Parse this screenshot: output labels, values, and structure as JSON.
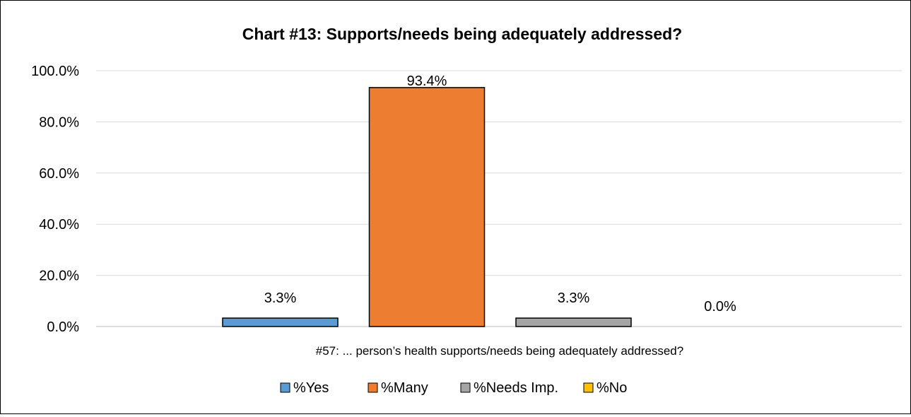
{
  "chart_data": {
    "type": "bar",
    "title": "Chart #13: Supports/needs being adequately addressed?",
    "xlabel": "",
    "ylabel": "",
    "categories": [
      "#57: ... person’s health supports/needs being adequately addressed?"
    ],
    "ylim": [
      0,
      100
    ],
    "y_ticks": [
      0,
      20,
      40,
      60,
      80,
      100
    ],
    "y_tick_labels": [
      "0.0%",
      "20.0%",
      "40.0%",
      "60.0%",
      "80.0%",
      "100.0%"
    ],
    "grid": true,
    "legend_position": "bottom",
    "series": [
      {
        "name": "%Yes",
        "values": [
          3.3
        ],
        "label": "3.3%",
        "color": "#5B9BD5"
      },
      {
        "name": "%Many",
        "values": [
          93.4
        ],
        "label": "93.4%",
        "color": "#ED7D31"
      },
      {
        "name": "%Needs Imp.",
        "values": [
          3.3
        ],
        "label": "3.3%",
        "color": "#A5A5A5"
      },
      {
        "name": "%No",
        "values": [
          0.0
        ],
        "label": "0.0%",
        "color": "#FFC000"
      }
    ]
  }
}
